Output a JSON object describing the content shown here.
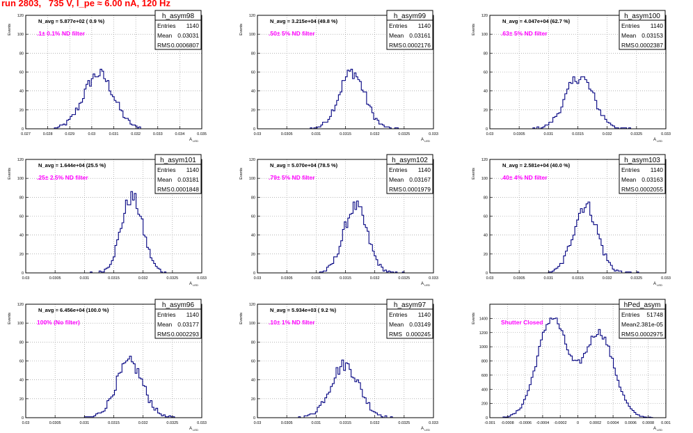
{
  "page_title": "run 2803,   735 V, I_pe ≈ 6.00 nA, 120 Hz",
  "stats_labels": {
    "entries": "Entries",
    "mean": "Mean",
    "rms": "RMS"
  },
  "axis_labels": {
    "y": "Events",
    "x": "A",
    "x_sub": "LED"
  },
  "colors": {
    "histogram": "#000080",
    "annotation": "#ff00ff",
    "title": "#ff0000",
    "grid": "#888888"
  },
  "chart_data": [
    {
      "type": "histogram",
      "name": "h_asym98",
      "nav_text": "N_avg = 5.877e+02 ( 0.9 %)",
      "filter_text": ".1± 0.1% ND filter",
      "entries": "1140",
      "mean": "0.03031",
      "rms": "0.0006807",
      "xlim": [
        0.027,
        0.035
      ],
      "xticks": [
        "0.027",
        "0.028",
        "0.029",
        "0.03",
        "0.031",
        "0.032",
        "0.033",
        "0.034",
        "0.035"
      ],
      "ylim": [
        0,
        120
      ],
      "yticks": [
        "0",
        "20",
        "40",
        "60",
        "80",
        "100",
        "120"
      ],
      "gauss": {
        "mu": 0.03031,
        "sigma": 0.00068,
        "peak": 58,
        "xmin": 0.0283,
        "xmax": 0.0323,
        "nbins": 50
      },
      "grid": true
    },
    {
      "type": "histogram",
      "name": "h_asym99",
      "nav_text": "N_avg = 3.215e+04 (49.8 %)",
      "filter_text": ".50± 5% ND filter",
      "entries": "1140",
      "mean": "0.03161",
      "rms": "0.0002176",
      "xlim": [
        0.03,
        0.033
      ],
      "xticks": [
        "0.03",
        "0.0305",
        "0.031",
        "0.0315",
        "0.032",
        "0.0325",
        "0.033"
      ],
      "ylim": [
        0,
        120
      ],
      "yticks": [
        "0",
        "20",
        "40",
        "60",
        "80",
        "100",
        "120"
      ],
      "gauss": {
        "mu": 0.03161,
        "sigma": 0.00022,
        "peak": 60,
        "xmin": 0.0309,
        "xmax": 0.0324,
        "nbins": 50
      },
      "grid": true
    },
    {
      "type": "histogram",
      "name": "h_asym100",
      "nav_text": "N_avg = 4.047e+04 (62.7 %)",
      "filter_text": ".63± 5% ND filter",
      "entries": "1140",
      "mean": "0.03153",
      "rms": "0.0002387",
      "xlim": [
        0.03,
        0.033
      ],
      "xticks": [
        "0.03",
        "0.0305",
        "0.031",
        "0.0315",
        "0.032",
        "0.0325",
        "0.033"
      ],
      "ylim": [
        0,
        120
      ],
      "yticks": [
        "0",
        "20",
        "40",
        "60",
        "80",
        "100",
        "120"
      ],
      "gauss": {
        "mu": 0.03153,
        "sigma": 0.00024,
        "peak": 55,
        "xmin": 0.0307,
        "xmax": 0.0324,
        "nbins": 50
      },
      "grid": true
    },
    {
      "type": "histogram",
      "name": "h_asym101",
      "nav_text": "N_avg = 1.644e+04 (25.5 %)",
      "filter_text": ".25± 2.5% ND filter",
      "entries": "1140",
      "mean": "0.03181",
      "rms": "0.0001848",
      "xlim": [
        0.03,
        0.033
      ],
      "xticks": [
        "0.03",
        "0.0305",
        "0.031",
        "0.0315",
        "0.032",
        "0.0325",
        "0.033"
      ],
      "ylim": [
        0,
        120
      ],
      "yticks": [
        "0",
        "20",
        "40",
        "60",
        "80",
        "100",
        "120"
      ],
      "gauss": {
        "mu": 0.03181,
        "sigma": 0.000185,
        "peak": 80,
        "xmin": 0.0311,
        "xmax": 0.0326,
        "nbins": 50
      },
      "grid": true
    },
    {
      "type": "histogram",
      "name": "h_asym102",
      "nav_text": "N_avg = 5.070e+04 (78.5 %)",
      "filter_text": ".79± 5% ND filter",
      "entries": "1140",
      "mean": "0.03167",
      "rms": "0.0001979",
      "xlim": [
        0.03,
        0.033
      ],
      "xticks": [
        "0.03",
        "0.0305",
        "0.031",
        "0.0315",
        "0.032",
        "0.0325",
        "0.033"
      ],
      "ylim": [
        0,
        120
      ],
      "yticks": [
        "0",
        "20",
        "40",
        "60",
        "80",
        "100",
        "120"
      ],
      "gauss": {
        "mu": 0.03167,
        "sigma": 0.0002,
        "peak": 70,
        "xmin": 0.031,
        "xmax": 0.0325,
        "nbins": 50
      },
      "grid": true
    },
    {
      "type": "histogram",
      "name": "h_asym103",
      "nav_text": "N_avg = 2.581e+04 (40.0 %)",
      "filter_text": ".40± 4% ND filter",
      "entries": "1140",
      "mean": "0.03163",
      "rms": "0.0002055",
      "xlim": [
        0.03,
        0.033
      ],
      "xticks": [
        "0.03",
        "0.0305",
        "0.031",
        "0.0315",
        "0.032",
        "0.0325",
        "0.033"
      ],
      "ylim": [
        0,
        120
      ],
      "yticks": [
        "0",
        "20",
        "40",
        "60",
        "80",
        "100",
        "120"
      ],
      "gauss": {
        "mu": 0.03163,
        "sigma": 0.000205,
        "peak": 72,
        "xmin": 0.031,
        "xmax": 0.0326,
        "nbins": 50
      },
      "grid": true
    },
    {
      "type": "histogram",
      "name": "h_asym96",
      "nav_text": "N_avg = 6.456e+04 (100.0 %)",
      "filter_text": "100% (No filter)",
      "entries": "1140",
      "mean": "0.03177",
      "rms": "0.0002293",
      "xlim": [
        0.03,
        0.033
      ],
      "xticks": [
        "0.03",
        "0.0305",
        "0.031",
        "0.0315",
        "0.032",
        "0.0325",
        "0.033"
      ],
      "ylim": [
        0,
        120
      ],
      "yticks": [
        "0",
        "20",
        "40",
        "60",
        "80",
        "100",
        "120"
      ],
      "gauss": {
        "mu": 0.03177,
        "sigma": 0.00023,
        "peak": 58,
        "xmin": 0.031,
        "xmax": 0.0326,
        "nbins": 50
      },
      "grid": true
    },
    {
      "type": "histogram",
      "name": "h_asym97",
      "nav_text": "N_avg = 5.934e+03 ( 9.2 %)",
      "filter_text": ".10± 1% ND filter",
      "entries": "1140",
      "mean": "0.03149",
      "rms": "0.000245",
      "xlim": [
        0.03,
        0.033
      ],
      "xticks": [
        "0.03",
        "0.0305",
        "0.031",
        "0.0315",
        "0.032",
        "0.0325",
        "0.033"
      ],
      "ylim": [
        0,
        120
      ],
      "yticks": [
        "0",
        "20",
        "40",
        "60",
        "80",
        "100",
        "120"
      ],
      "gauss": {
        "mu": 0.03149,
        "sigma": 0.000245,
        "peak": 56,
        "xmin": 0.0307,
        "xmax": 0.0323,
        "nbins": 50
      },
      "grid": true
    },
    {
      "type": "histogram",
      "name": "hPed_asym",
      "nav_text": "",
      "filter_text": "Shutter Closed",
      "entries": "51748",
      "mean": "-2.381e-05",
      "rms": "0.0002975",
      "xlim": [
        -0.001,
        0.001
      ],
      "xticks": [
        "-0.001",
        "-0.0008",
        "-0.0006",
        "-0.0004",
        "-0.0002",
        "0",
        "0.0002",
        "0.0004",
        "0.0006",
        "0.0008",
        "0.001"
      ],
      "ylim": [
        0,
        1600
      ],
      "yticks": [
        "0",
        "200",
        "400",
        "600",
        "800",
        "1000",
        "1200",
        "1400"
      ],
      "bimodal": {
        "mu1": -0.00029,
        "s1": 0.00017,
        "a1": 1400,
        "mu2": 0.00024,
        "s2": 0.00017,
        "a2": 1200,
        "xmin": -0.00085,
        "xmax": 0.00085,
        "nbins": 80
      },
      "grid": true
    }
  ]
}
